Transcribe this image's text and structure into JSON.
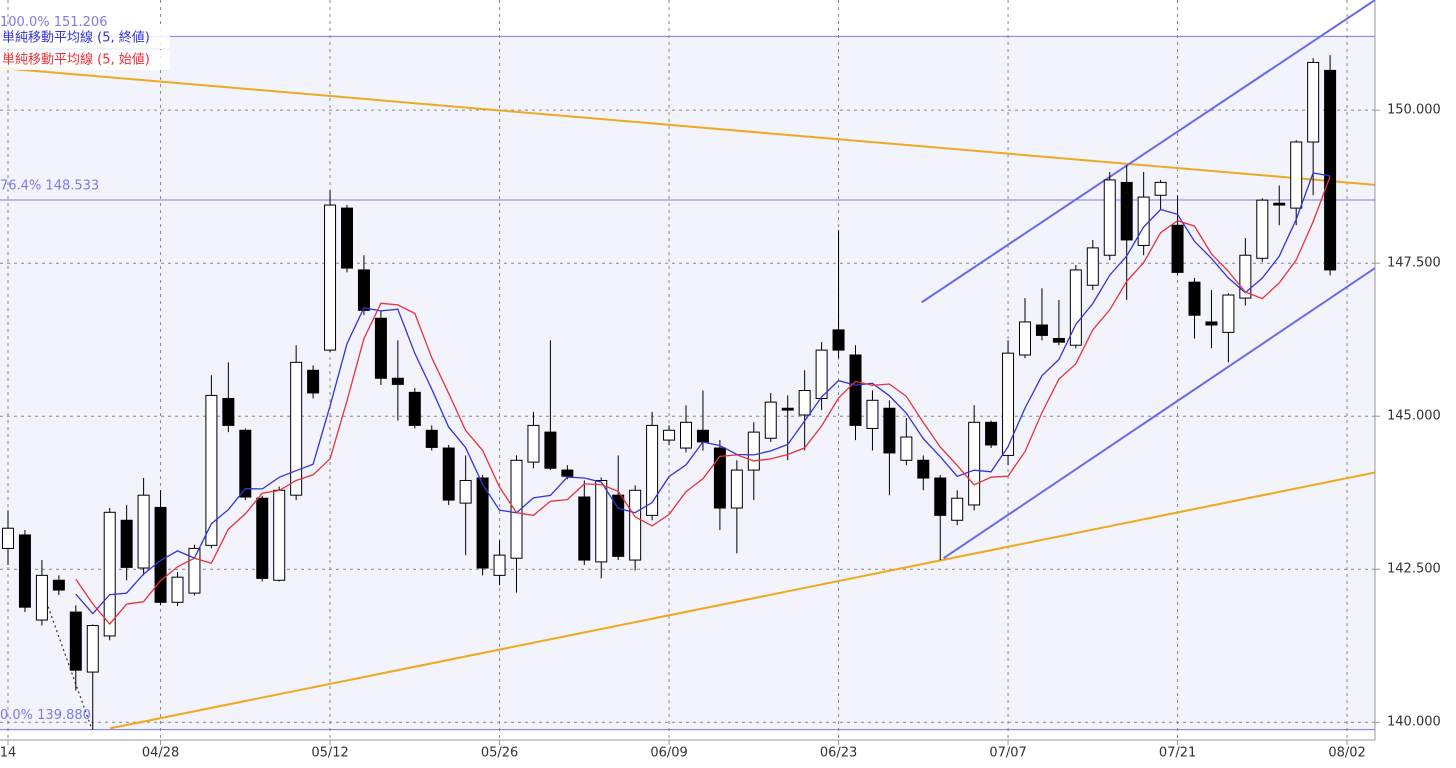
{
  "chart_data": {
    "type": "candlestick",
    "categories": [
      "14",
      null,
      null,
      null,
      null,
      null,
      null,
      null,
      null,
      "04/28",
      null,
      null,
      null,
      null,
      null,
      null,
      null,
      null,
      null,
      "05/12",
      null,
      null,
      null,
      null,
      null,
      null,
      null,
      null,
      null,
      "05/26",
      null,
      null,
      null,
      null,
      null,
      null,
      null,
      null,
      null,
      "06/09",
      null,
      null,
      null,
      null,
      null,
      null,
      null,
      null,
      null,
      "06/23",
      null,
      null,
      null,
      null,
      null,
      null,
      null,
      null,
      null,
      "07/07",
      null,
      null,
      null,
      null,
      null,
      null,
      null,
      null,
      null,
      "07/21",
      null,
      null,
      null,
      null,
      null,
      null,
      null,
      null,
      null,
      "08/02"
    ],
    "open": [
      142.84,
      143.06,
      141.67,
      142.32,
      141.8,
      140.82,
      141.41,
      143.3,
      142.52,
      143.51,
      141.96,
      142.11,
      142.89,
      145.29,
      144.77,
      143.66,
      142.32,
      143.71,
      145.75,
      146.08,
      148.4,
      147.39,
      146.6,
      145.62,
      145.39,
      144.77,
      144.48,
      143.58,
      143.99,
      142.4,
      142.68,
      144.25,
      144.74,
      144.12,
      143.68,
      142.62,
      143.71,
      142.65,
      143.38,
      144.61,
      144.48,
      144.77,
      144.48,
      143.5,
      144.12,
      144.64,
      145.13,
      145.02,
      145.29,
      146.41,
      146.0,
      144.8,
      145.13,
      144.28,
      144.28,
      143.99,
      143.3,
      143.55,
      144.9,
      144.36,
      146.0,
      146.49,
      146.27,
      146.16,
      147.14,
      147.63,
      148.82,
      147.79,
      148.61,
      148.12,
      147.19,
      146.54,
      146.37,
      146.93,
      147.58,
      148.48,
      148.4,
      149.48,
      150.65,
      null
    ],
    "high": [
      143.46,
      143.14,
      142.65,
      142.4,
      141.91,
      141.6,
      143.5,
      143.55,
      143.99,
      143.79,
      142.45,
      142.9,
      145.67,
      145.88,
      144.8,
      143.7,
      143.85,
      146.16,
      145.83,
      148.69,
      148.45,
      147.63,
      146.73,
      146.24,
      145.46,
      144.85,
      144.53,
      144.36,
      144.04,
      142.97,
      144.36,
      145.07,
      146.24,
      144.2,
      143.95,
      144.0,
      144.36,
      143.87,
      145.07,
      144.85,
      145.18,
      145.42,
      144.61,
      144.28,
      144.9,
      145.38,
      145.34,
      145.75,
      146.21,
      148.04,
      146.16,
      145.42,
      145.26,
      144.97,
      144.36,
      144.04,
      143.79,
      145.18,
      144.93,
      146.24,
      146.93,
      147.09,
      146.9,
      147.47,
      147.88,
      148.99,
      149.1,
      148.99,
      148.86,
      148.61,
      147.26,
      147.06,
      147.01,
      147.91,
      148.56,
      148.77,
      149.51,
      150.85,
      150.9,
      null
    ],
    "low": [
      142.57,
      141.8,
      141.58,
      142.08,
      140.52,
      139.88,
      141.34,
      142.32,
      142.4,
      141.91,
      141.9,
      142.07,
      142.84,
      144.74,
      143.63,
      142.3,
      142.3,
      143.63,
      145.29,
      146.05,
      147.35,
      146.65,
      145.51,
      144.93,
      144.8,
      144.44,
      143.55,
      142.73,
      142.4,
      142.24,
      142.12,
      144.15,
      144.12,
      143.97,
      142.57,
      142.35,
      142.65,
      142.48,
      143.3,
      144.53,
      144.41,
      144.44,
      143.14,
      142.76,
      143.63,
      144.58,
      144.28,
      144.44,
      145.1,
      145.95,
      144.61,
      144.44,
      143.71,
      144.2,
      143.79,
      142.65,
      143.22,
      143.46,
      144.48,
      144.2,
      145.95,
      146.24,
      146.16,
      146.11,
      147.06,
      147.55,
      146.9,
      147.63,
      148.37,
      147.3,
      146.27,
      146.11,
      145.88,
      146.81,
      147.52,
      148.12,
      148.12,
      148.61,
      147.3,
      null
    ],
    "close": [
      143.17,
      141.88,
      142.4,
      142.16,
      140.85,
      141.58,
      143.43,
      142.53,
      143.71,
      141.96,
      142.37,
      142.84,
      145.34,
      144.85,
      143.68,
      142.35,
      143.79,
      145.88,
      145.38,
      148.45,
      147.42,
      146.73,
      145.62,
      145.52,
      144.85,
      144.49,
      143.63,
      143.95,
      142.52,
      142.73,
      144.28,
      144.85,
      144.15,
      144.02,
      142.65,
      143.95,
      142.71,
      143.79,
      144.85,
      144.77,
      144.9,
      144.58,
      143.5,
      144.12,
      144.74,
      145.23,
      145.1,
      145.42,
      146.08,
      146.08,
      144.85,
      145.26,
      144.4,
      144.66,
      143.99,
      143.38,
      143.66,
      144.9,
      144.53,
      146.03,
      146.54,
      146.32,
      146.21,
      147.39,
      147.75,
      148.86,
      147.88,
      148.58,
      148.82,
      147.35,
      146.65,
      146.49,
      146.98,
      147.63,
      148.53,
      148.45,
      149.48,
      150.78,
      147.39,
      null
    ],
    "up_color": "#ffffff",
    "down_color": "#000000",
    "moving_averages": [
      {
        "name": "単純移動平均線 (5, 終値)",
        "period": 5,
        "field": "close",
        "color": "#3434d6"
      },
      {
        "name": "単純移動平均線 (5, 始値)",
        "period": 5,
        "field": "open",
        "color": "#e8323c"
      }
    ],
    "fibonacci": {
      "color": "#7b7be8",
      "levels": [
        {
          "label": "100.0% 151.206",
          "value": 151.206
        },
        {
          "label": "76.4% 148.533",
          "value": 148.533
        },
        {
          "label": "0.0% 139.880",
          "value": 139.88
        }
      ]
    },
    "trend_lines": [
      {
        "color": "#f0a81e",
        "points": [
          [
            -0.47,
            150.69
          ],
          [
            80.65,
            148.78
          ]
        ]
      },
      {
        "color": "#f0a81e",
        "points": [
          [
            6.02,
            139.9
          ],
          [
            80.65,
            144.08
          ]
        ]
      },
      {
        "color": "#6a6ae8",
        "points": [
          [
            53.9,
            146.86
          ],
          [
            80.65,
            151.8
          ]
        ]
      },
      {
        "color": "#6a6ae8",
        "points": [
          [
            55.2,
            142.68
          ],
          [
            80.65,
            147.42
          ]
        ]
      },
      {
        "color": "#333333",
        "dash": true,
        "points": [
          [
            1.77,
            142.35
          ],
          [
            4.96,
            139.88
          ]
        ]
      }
    ],
    "ylim": [
      139.71,
      151.8
    ],
    "yticks": [
      {
        "value": 140,
        "label": "140.000"
      },
      {
        "value": 142.5,
        "label": "142.500"
      },
      {
        "value": 145,
        "label": "145.000"
      },
      {
        "value": 147.5,
        "label": "147.500"
      },
      {
        "value": 150,
        "label": "150.000"
      }
    ],
    "grid": true
  }
}
